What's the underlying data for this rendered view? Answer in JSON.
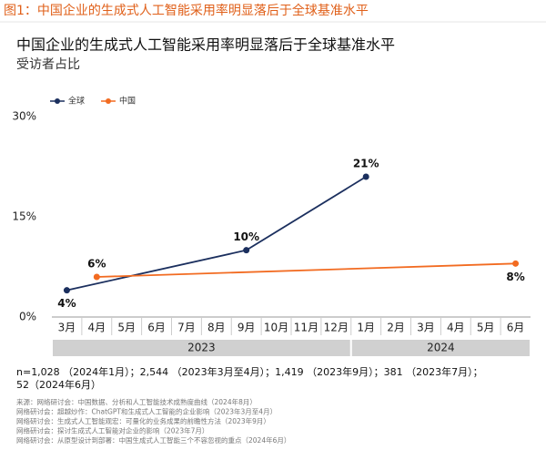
{
  "header": "图1：中国企业的生成式人工智能采用率明显落后于全球基准水平",
  "chart_data": {
    "type": "line",
    "title": "中国企业的生成式人工智能采用率明显落后于全球基准水平",
    "subtitle": "受访者占比",
    "categories": [
      "3月",
      "4月",
      "5月",
      "6月",
      "7月",
      "8月",
      "9月",
      "10月",
      "11月",
      "12月",
      "1月",
      "2月",
      "3月",
      "4月",
      "5月",
      "6月"
    ],
    "x_groups": [
      "2023",
      "2023",
      "2023",
      "2023",
      "2023",
      "2023",
      "2023",
      "2023",
      "2023",
      "2023",
      "2024",
      "2024",
      "2024",
      "2024",
      "2024",
      "2024"
    ],
    "series": [
      {
        "name": "全球",
        "color": "#1b2f5e",
        "values": [
          4,
          null,
          null,
          null,
          null,
          null,
          10,
          null,
          null,
          null,
          21,
          null,
          null,
          null,
          null,
          null
        ],
        "value_labels": [
          "4%",
          null,
          null,
          null,
          null,
          null,
          "10%",
          null,
          null,
          null,
          "21%",
          null,
          null,
          null,
          null,
          null
        ]
      },
      {
        "name": "中国",
        "color": "#f26b21",
        "values": [
          null,
          6,
          null,
          null,
          null,
          null,
          null,
          null,
          null,
          null,
          null,
          null,
          null,
          null,
          null,
          8
        ],
        "value_labels": [
          null,
          "6%",
          null,
          null,
          null,
          null,
          null,
          null,
          null,
          null,
          null,
          null,
          null,
          null,
          null,
          "8%"
        ]
      }
    ],
    "ylim": [
      0,
      30
    ],
    "yticks": [
      {
        "value": 0,
        "label": "0%"
      },
      {
        "value": 15,
        "label": "15%"
      },
      {
        "value": 30,
        "label": "30%"
      }
    ],
    "grid": false,
    "legend": "top-left"
  },
  "notes": [
    "n=1,028 （2024年1月）；2,544 （2023年3月至4月）；1,419 （2023年9月）；381 （2023年7月）；",
    "52（2024年6月）"
  ],
  "sources": [
    "来源：网络研讨会：中国数据、分析和人工智能技术成熟度曲线（2024年8月）",
    "网络研讨会：超越炒作：ChatGPT和生成式人工智能的企业影响（2023年3月至4月）",
    "网络研讨会：生成式人工智能观宏：可量化的业务成果的前瞻性方法（2023年9月）",
    "网络研讨会：探讨生成式人工智能对企业的影响（2023年7月）",
    "网络研讨会：从原型设计到部署：中国生成式人工智能三个不容忽视的重点（2024年6月）"
  ]
}
